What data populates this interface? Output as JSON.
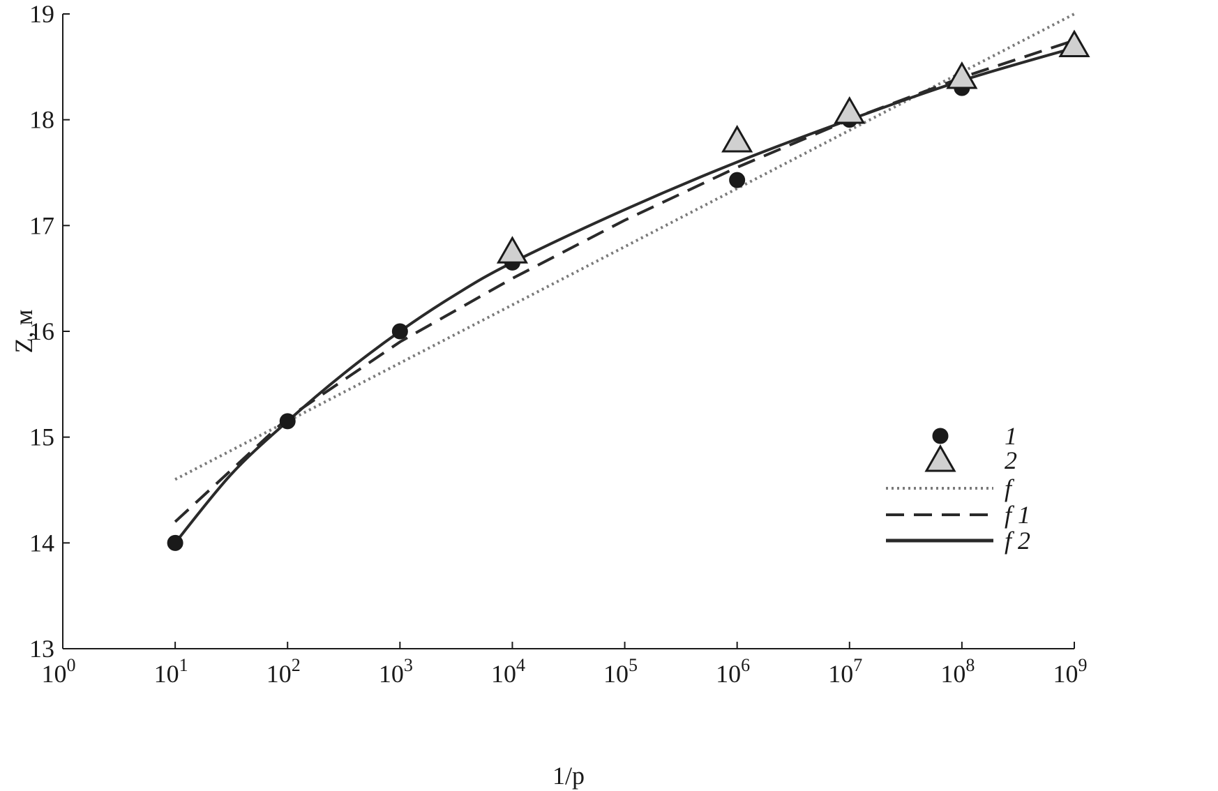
{
  "chart_data": {
    "type": "scatter",
    "xlabel": "1/p",
    "ylabel": "Z, м",
    "xscale": "log",
    "xlim": [
      1,
      1000000000
    ],
    "ylim": [
      13,
      19
    ],
    "x_ticks": [
      {
        "value": 1,
        "base": "10",
        "exp": "0"
      },
      {
        "value": 10,
        "base": "10",
        "exp": "1"
      },
      {
        "value": 100,
        "base": "10",
        "exp": "2"
      },
      {
        "value": 1000,
        "base": "10",
        "exp": "3"
      },
      {
        "value": 10000,
        "base": "10",
        "exp": "4"
      },
      {
        "value": 100000,
        "base": "10",
        "exp": "5"
      },
      {
        "value": 1000000,
        "base": "10",
        "exp": "6"
      },
      {
        "value": 10000000,
        "base": "10",
        "exp": "7"
      },
      {
        "value": 100000000,
        "base": "10",
        "exp": "8"
      },
      {
        "value": 1000000000,
        "base": "10",
        "exp": "9"
      }
    ],
    "y_ticks": [
      13,
      14,
      15,
      16,
      17,
      18,
      19
    ],
    "grid": false,
    "legend_position": "right",
    "points": [
      {
        "name": "1",
        "marker": "circle",
        "color": "#1a1a1a",
        "x": [
          10,
          100,
          1000,
          10000,
          1000000,
          10000000,
          100000000
        ],
        "y": [
          14.0,
          15.15,
          16.0,
          16.65,
          17.43,
          18.0,
          18.3
        ]
      },
      {
        "name": "2",
        "marker": "triangle",
        "color": "#d0d0d0",
        "x": [
          10000,
          1000000,
          10000000,
          100000000,
          1000000000
        ],
        "y": [
          16.75,
          17.8,
          18.07,
          18.4,
          18.7
        ]
      }
    ],
    "lines": [
      {
        "name": "f",
        "style": "dotted",
        "color": "#7a7a7a",
        "x": [
          10,
          1000000000
        ],
        "y": [
          14.6,
          19.0
        ]
      },
      {
        "name": "f 1",
        "style": "dashed",
        "color": "#2a2a2a",
        "x": [
          10,
          100,
          1000,
          10000,
          100000,
          1000000,
          10000000,
          100000000,
          1000000000
        ],
        "y": [
          14.2,
          15.18,
          15.9,
          16.5,
          17.05,
          17.55,
          18.0,
          18.4,
          18.75
        ]
      },
      {
        "name": "f 2",
        "style": "solid",
        "color": "#2a2a2a",
        "x": [
          10,
          31.6,
          100,
          316,
          1000,
          3160,
          10000,
          100000,
          1000000,
          10000000,
          100000000,
          1000000000
        ],
        "y": [
          14.0,
          14.65,
          15.15,
          15.6,
          16.0,
          16.35,
          16.65,
          17.15,
          17.6,
          18.0,
          18.37,
          18.68
        ]
      }
    ]
  }
}
